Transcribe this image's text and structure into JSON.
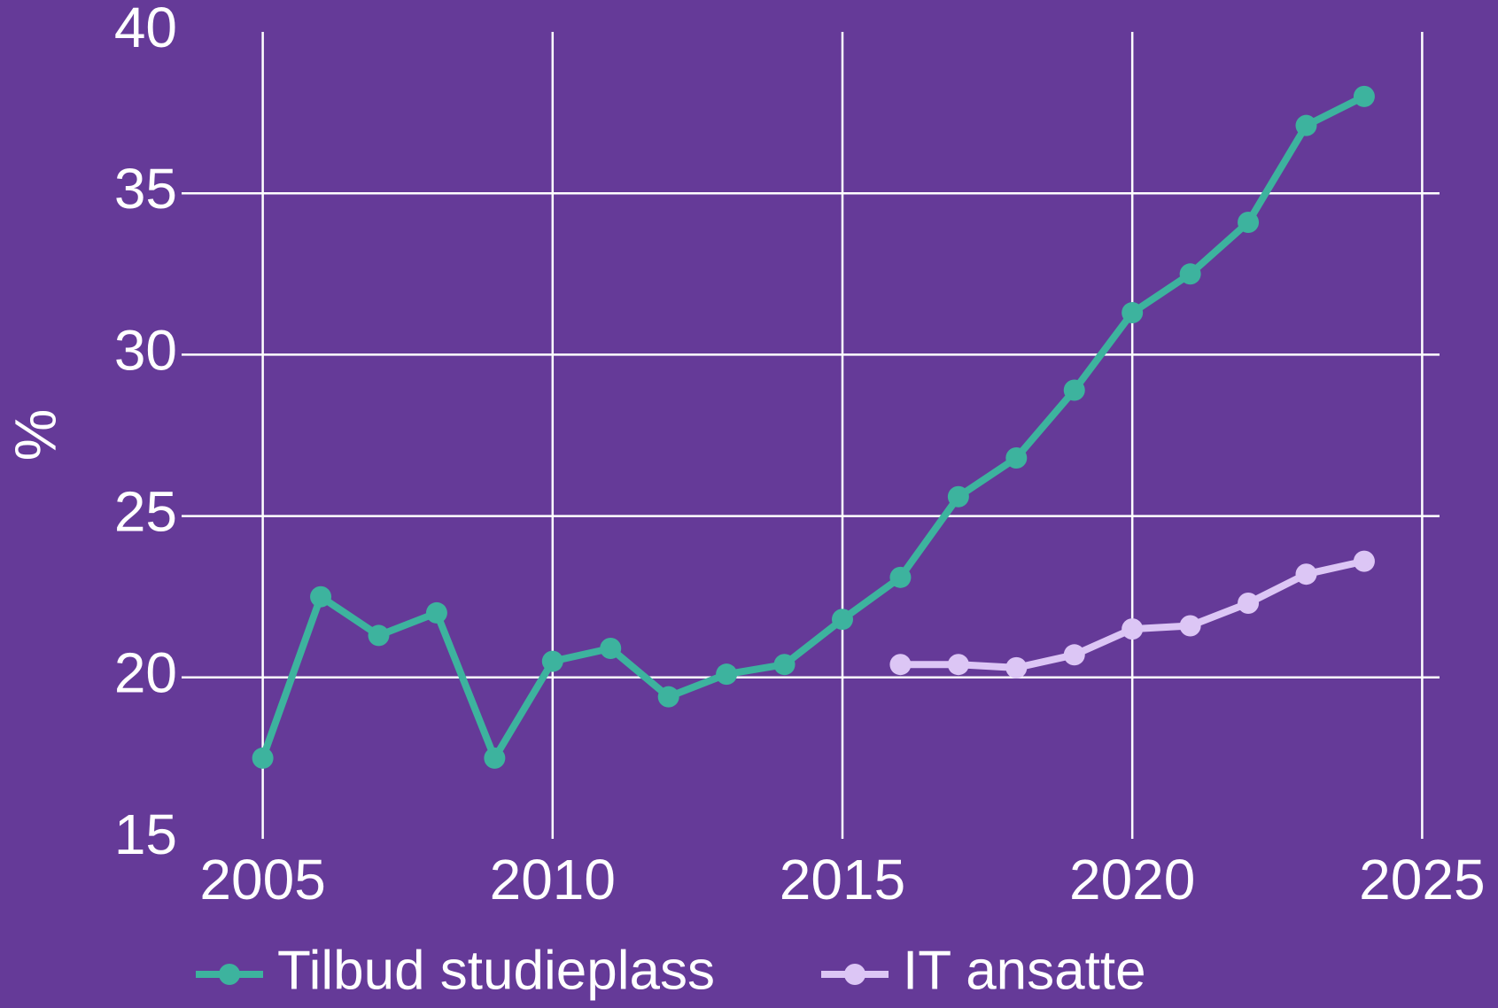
{
  "chart_data": {
    "type": "line",
    "y_label": "%",
    "x": [
      2005,
      2006,
      2007,
      2008,
      2009,
      2010,
      2011,
      2012,
      2013,
      2014,
      2015,
      2016,
      2017,
      2018,
      2019,
      2020,
      2021,
      2022,
      2023,
      2024
    ],
    "series": [
      {
        "name": "Tilbud studieplass",
        "color": "#3db39e",
        "values": [
          17.5,
          22.5,
          21.3,
          22.0,
          17.5,
          20.5,
          20.9,
          19.4,
          20.1,
          20.4,
          21.8,
          23.1,
          25.6,
          26.8,
          28.9,
          31.3,
          32.5,
          34.1,
          37.1,
          38.0
        ]
      },
      {
        "name": "IT ansatte",
        "color": "#dcc6f5",
        "values": [
          null,
          null,
          null,
          null,
          null,
          null,
          null,
          null,
          null,
          null,
          null,
          20.4,
          20.4,
          20.3,
          20.7,
          21.5,
          21.6,
          22.3,
          23.2,
          23.6
        ]
      }
    ],
    "xlim": [
      2003.6,
      2025.3
    ],
    "xticks": [
      2005,
      2010,
      2015,
      2020,
      2025
    ],
    "ylim": [
      15,
      40
    ],
    "yticks": [
      15,
      20,
      25,
      30,
      35,
      40
    ],
    "grid": true,
    "legend": "bottom",
    "background": "#653a98"
  }
}
